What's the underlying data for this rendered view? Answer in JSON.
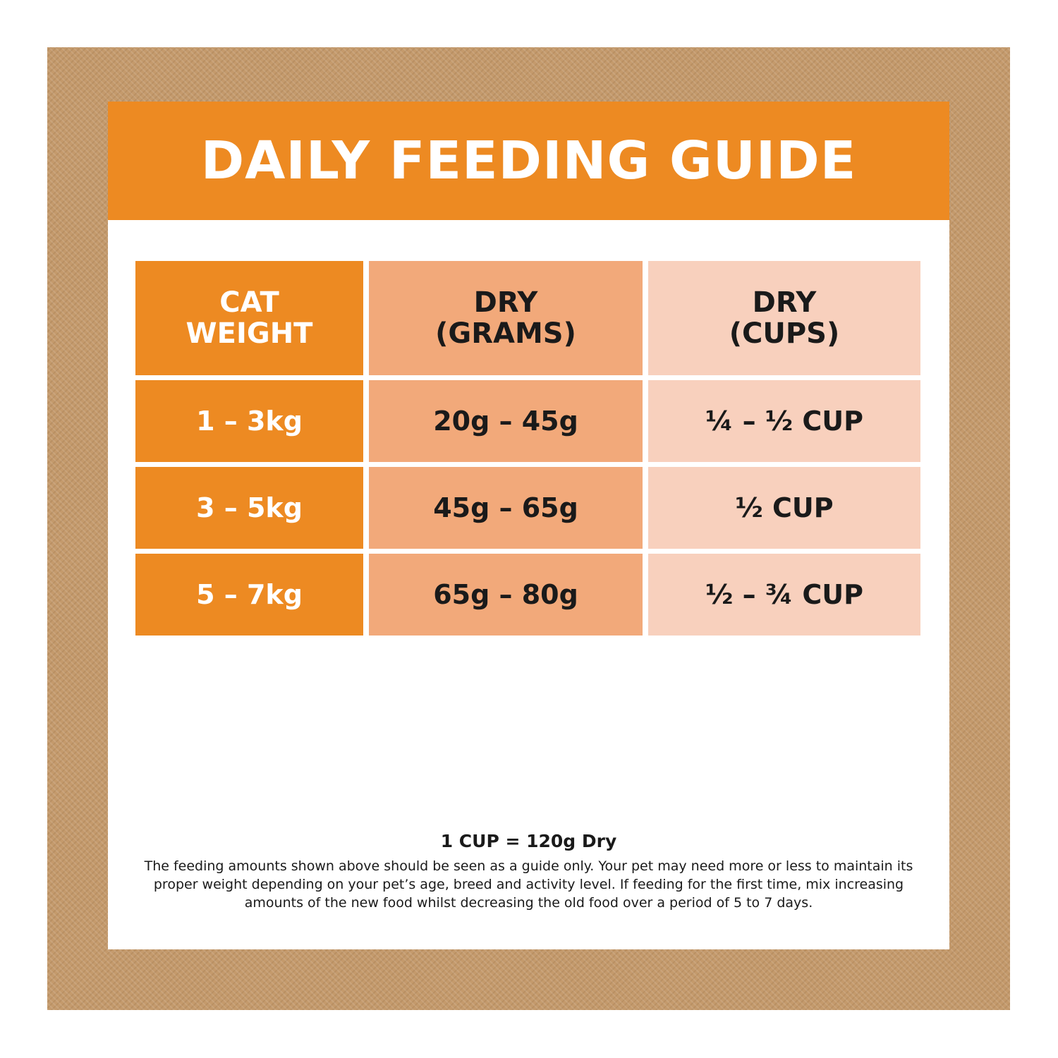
{
  "title": "DAILY FEEDING GUIDE",
  "table": {
    "headers": [
      {
        "line1": "CAT",
        "line2": "WEIGHT"
      },
      {
        "line1": "DRY",
        "line2": "(GRAMS)"
      },
      {
        "line1": "DRY",
        "line2": "(CUPS)"
      }
    ],
    "rows": [
      {
        "weight": "1 – 3kg",
        "grams": "20g – 45g",
        "cups": "¼ – ½ CUP"
      },
      {
        "weight": "3 – 5kg",
        "grams": "45g – 65g",
        "cups": "½ CUP"
      },
      {
        "weight": "5 – 7kg",
        "grams": "65g – 80g",
        "cups": "½ – ¾ CUP"
      }
    ]
  },
  "footer": {
    "conversion": "1 CUP = 120g Dry",
    "disclaimer": "The feeding amounts shown above should be seen as a guide only. Your pet may need more or less to maintain its proper weight depending on your pet’s age, breed and activity level. If feeding for the first time, mix increasing amounts of the new food whilst decreasing the old food over a period of 5 to 7 days."
  },
  "colors": {
    "border": "#c49a6c",
    "orange": "#ed8a22",
    "salmon": "#f2a97a",
    "peach": "#f8d0bd"
  }
}
